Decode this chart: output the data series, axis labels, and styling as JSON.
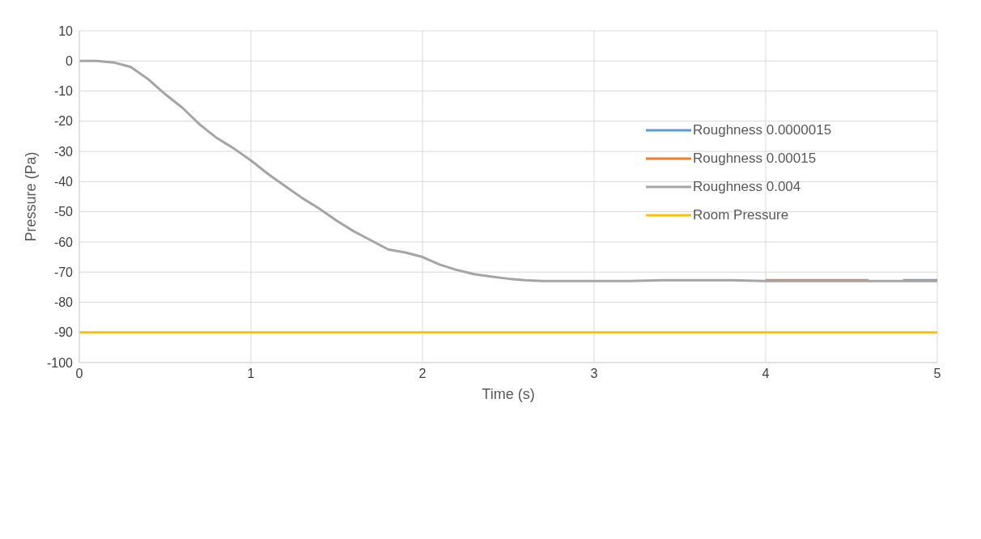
{
  "chart_data": {
    "type": "line",
    "xlabel": "Time (s)",
    "ylabel": "Pressure (Pa)",
    "x": [
      0,
      0.1,
      0.2,
      0.3,
      0.4,
      0.5,
      0.6,
      0.7,
      0.8,
      0.9,
      1.0,
      1.1,
      1.2,
      1.3,
      1.4,
      1.5,
      1.6,
      1.7,
      1.8,
      1.9,
      2.0,
      2.1,
      2.2,
      2.3,
      2.4,
      2.5,
      2.6,
      2.7,
      2.8,
      3.0,
      3.2,
      3.4,
      3.6,
      3.8,
      4.0,
      4.2,
      4.4,
      4.6,
      4.8,
      5.0
    ],
    "series": [
      {
        "name": "Roughness 0.0000015",
        "color": "#5b9bd5",
        "values": [
          null,
          null,
          null,
          null,
          null,
          null,
          null,
          null,
          null,
          null,
          null,
          null,
          null,
          null,
          null,
          null,
          null,
          null,
          null,
          null,
          null,
          null,
          null,
          null,
          null,
          null,
          null,
          null,
          null,
          null,
          null,
          null,
          null,
          null,
          null,
          null,
          null,
          null,
          -72.7,
          -72.7
        ]
      },
      {
        "name": "Roughness 0.00015",
        "color": "#ed7d31",
        "values": [
          null,
          null,
          null,
          null,
          null,
          null,
          null,
          null,
          null,
          null,
          null,
          null,
          null,
          null,
          null,
          null,
          null,
          null,
          null,
          null,
          null,
          null,
          null,
          null,
          null,
          null,
          null,
          null,
          null,
          null,
          null,
          null,
          null,
          null,
          -72.7,
          -72.7,
          -72.7,
          -72.7,
          null,
          null
        ]
      },
      {
        "name": "Roughness 0.004",
        "color": "#a5a5a5",
        "values": [
          0,
          0,
          -0.5,
          -2,
          -6,
          -11,
          -15.5,
          -21,
          -25.5,
          -29,
          -33,
          -37.5,
          -41.5,
          -45.5,
          -49,
          -53,
          -56.5,
          -59.5,
          -62.5,
          -63.5,
          -65,
          -67.5,
          -69.3,
          -70.7,
          -71.5,
          -72.2,
          -72.7,
          -73,
          -73,
          -73,
          -73,
          -72.7,
          -72.7,
          -72.7,
          -73,
          -73,
          -73,
          -73,
          -73,
          -73
        ]
      },
      {
        "name": "Room Pressure",
        "color": "#ffc000",
        "values": [
          -90,
          -90,
          -90,
          -90,
          -90,
          -90,
          -90,
          -90,
          -90,
          -90,
          -90,
          -90,
          -90,
          -90,
          -90,
          -90,
          -90,
          -90,
          -90,
          -90,
          -90,
          -90,
          -90,
          -90,
          -90,
          -90,
          -90,
          -90,
          -90,
          -90,
          -90,
          -90,
          -90,
          -90,
          -90,
          -90,
          -90,
          -90,
          -90,
          -90
        ]
      }
    ],
    "xlim": [
      0,
      5
    ],
    "xticks": [
      0,
      1,
      2,
      3,
      4,
      5
    ],
    "ylim": [
      -100,
      10
    ],
    "yticks": [
      10,
      0,
      -10,
      -20,
      -30,
      -40,
      -50,
      -60,
      -70,
      -80,
      -90,
      -100
    ],
    "grid": true,
    "legend": "right",
    "marker": "none",
    "line_style": "solid"
  }
}
